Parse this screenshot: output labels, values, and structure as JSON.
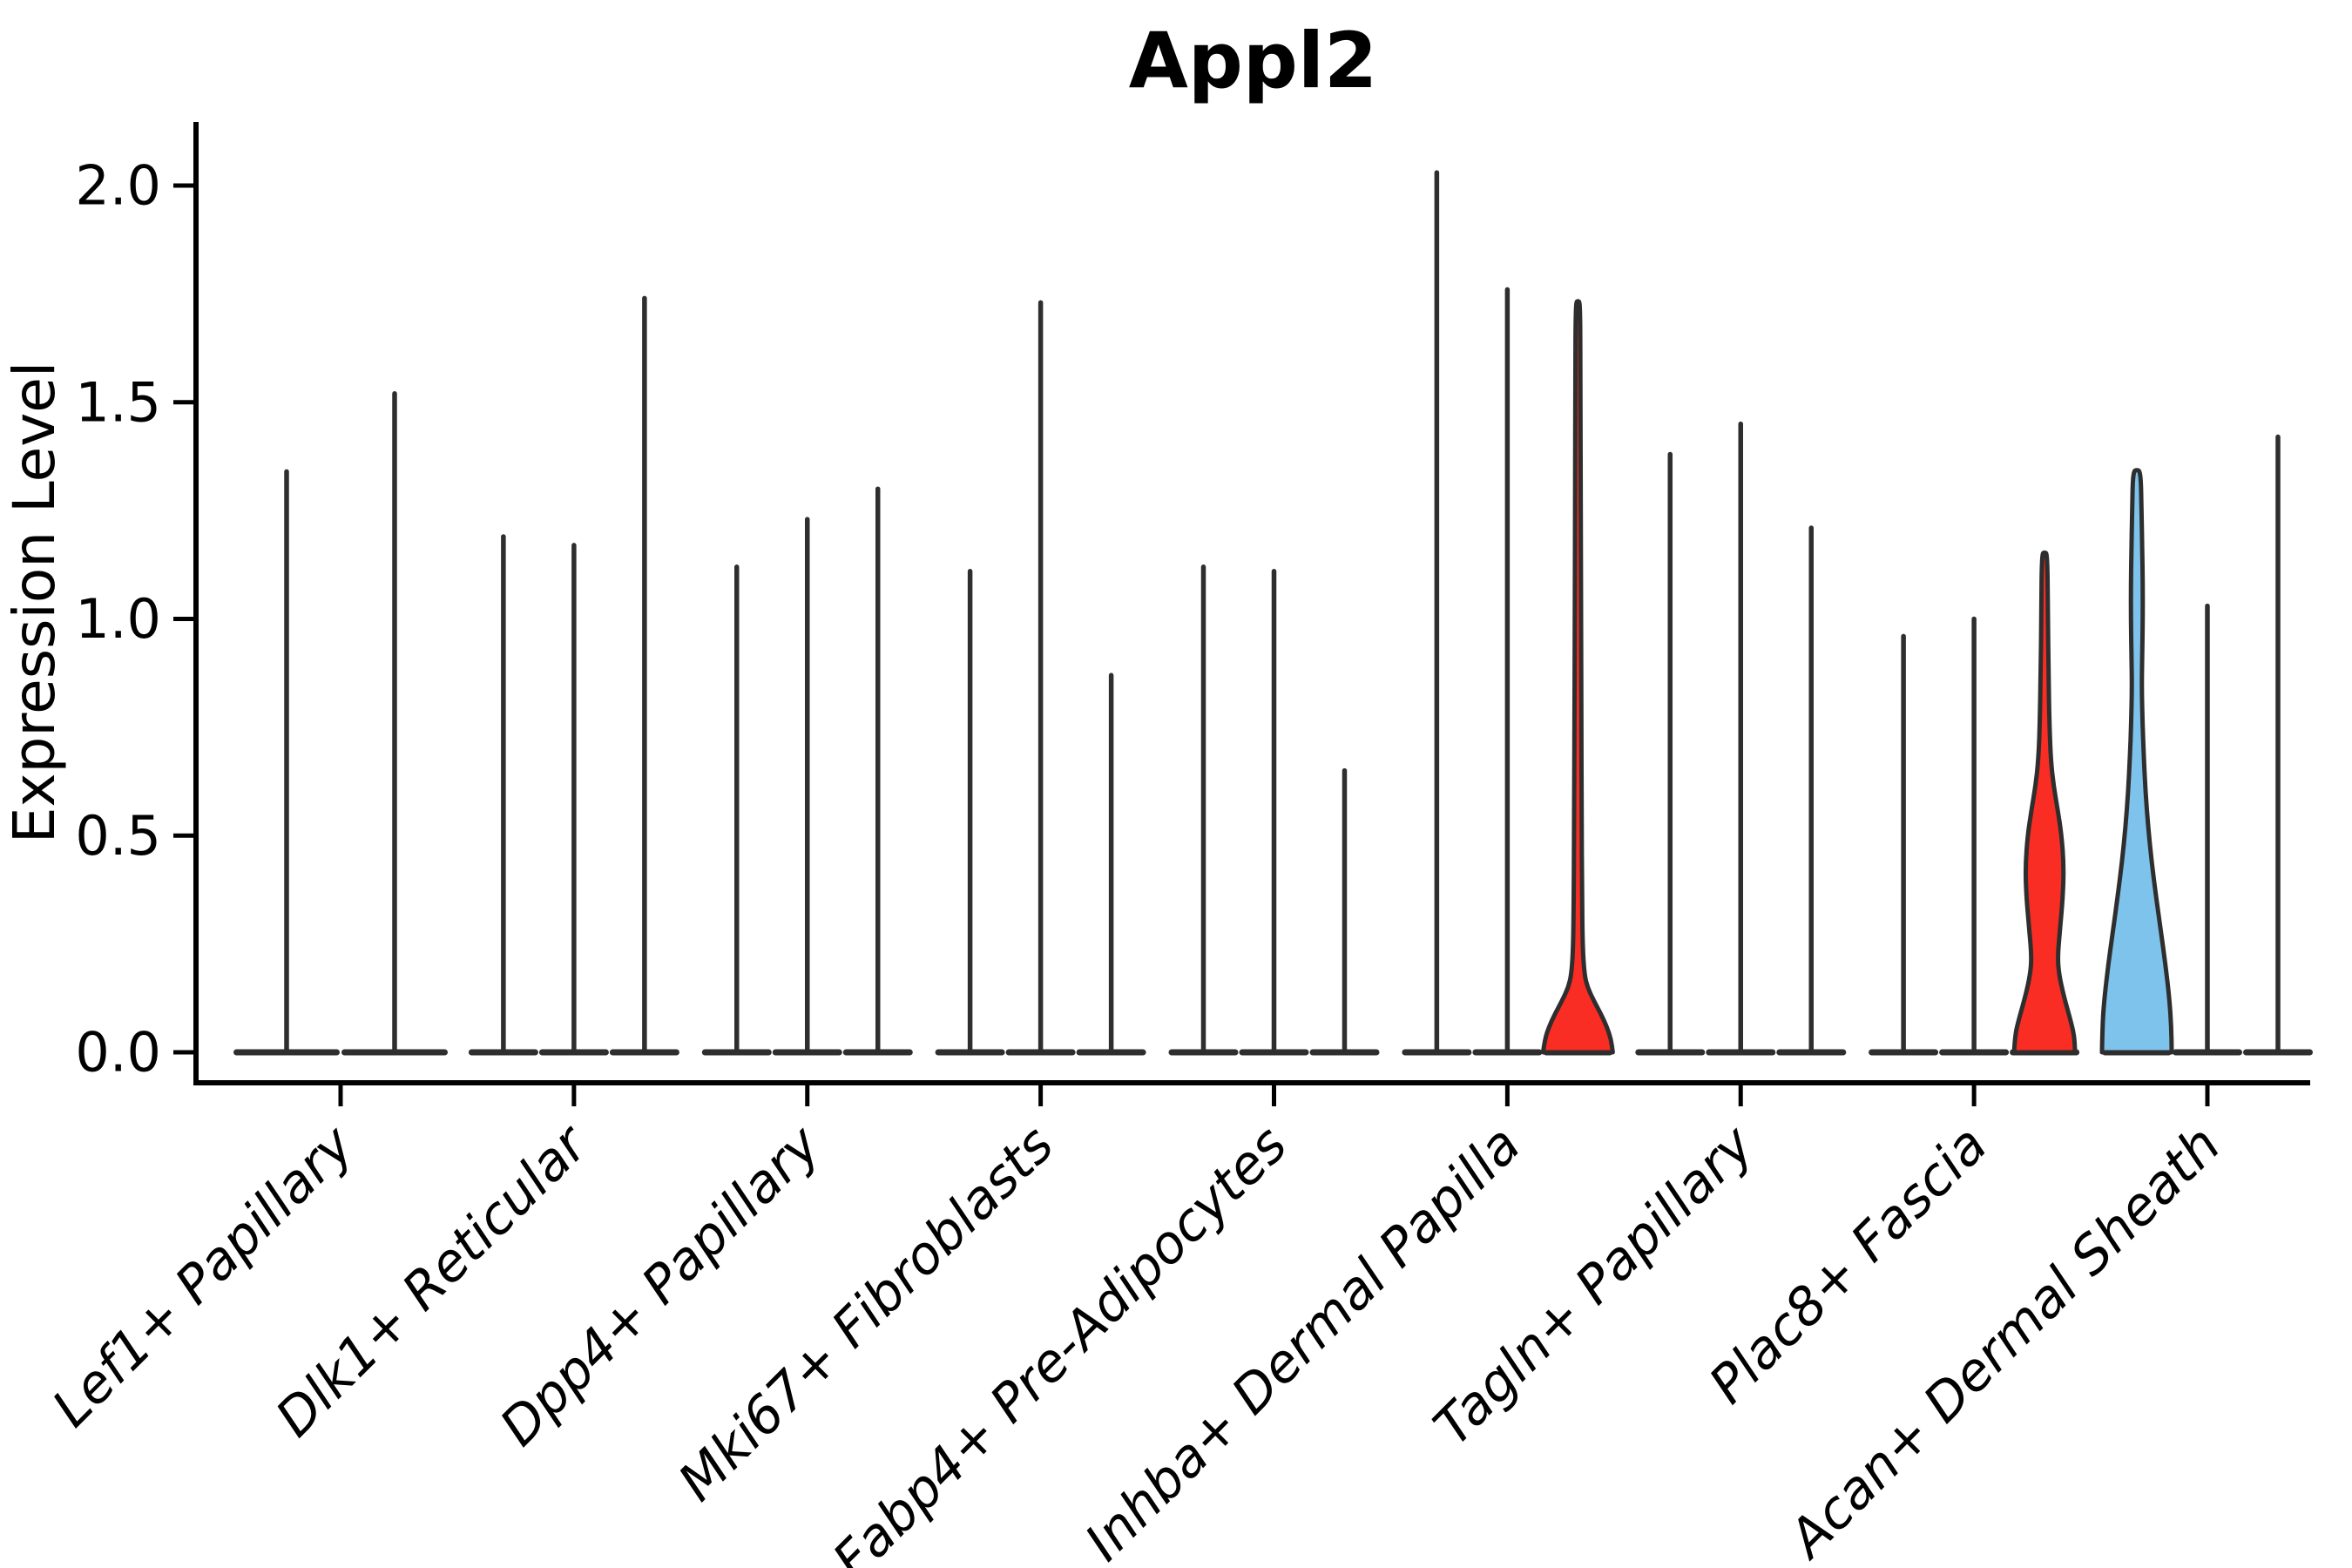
{
  "title": "Appl2",
  "ylabel": "Expression Level",
  "ytick_labels": [
    "0.0",
    "0.5",
    "1.0",
    "1.5",
    "2.0"
  ],
  "colors": {
    "red": "#f92d23",
    "blue": "#7ec3eb",
    "violin_stroke": "#2e2e2e",
    "axis": "#000000"
  },
  "chart_data": {
    "type": "violin",
    "title": "Appl2",
    "xlabel": "",
    "ylabel": "Expression Level",
    "ylim": [
      -0.07,
      2.15
    ],
    "yticks": [
      0.0,
      0.5,
      1.0,
      1.5,
      2.0
    ],
    "grid": false,
    "legend": "none",
    "description": "Grouped violin plot of Appl2 expression per fibroblast cluster; most violins collapse to a flat base at 0 with a thin spike to the max expressed cell. Three violins have visible density bodies: red violins in Inhba+ Dermal Papilla and Plac8+ Fascia groups, one blue violin in Acan+ Dermal Sheath group.",
    "categories": [
      {
        "label": "Lef1+ Papillary",
        "violins": [
          {
            "max": 1.34,
            "shape": "spike"
          },
          {
            "max": 1.52,
            "shape": "spike"
          }
        ]
      },
      {
        "label": "Dlk1+ Reticular",
        "violins": [
          {
            "max": 1.19,
            "shape": "spike"
          },
          {
            "max": 1.17,
            "shape": "spike"
          },
          {
            "max": 1.74,
            "shape": "spike"
          }
        ]
      },
      {
        "label": "Dpp4+ Papillary",
        "violins": [
          {
            "max": 1.12,
            "shape": "spike"
          },
          {
            "max": 1.23,
            "shape": "spike"
          },
          {
            "max": 1.3,
            "shape": "spike"
          }
        ]
      },
      {
        "label": "Mki67+ Fibroblasts",
        "violins": [
          {
            "max": 1.11,
            "shape": "spike"
          },
          {
            "max": 1.73,
            "shape": "spike"
          },
          {
            "max": 0.87,
            "shape": "spike"
          }
        ]
      },
      {
        "label": "Fabp4+ Pre-Adipocytes",
        "violins": [
          {
            "max": 1.12,
            "shape": "spike"
          },
          {
            "max": 1.11,
            "shape": "spike"
          },
          {
            "max": 0.65,
            "shape": "spike"
          }
        ]
      },
      {
        "label": "Inhba+ Dermal Papilla",
        "violins": [
          {
            "max": 2.03,
            "shape": "spike"
          },
          {
            "max": 1.76,
            "shape": "spike"
          },
          {
            "max": 1.73,
            "shape": "bell",
            "fill": "red"
          }
        ]
      },
      {
        "label": "Tagln+ Papillary",
        "violins": [
          {
            "max": 1.38,
            "shape": "spike"
          },
          {
            "max": 1.45,
            "shape": "spike"
          },
          {
            "max": 1.21,
            "shape": "spike"
          }
        ]
      },
      {
        "label": "Plac8+ Fascia",
        "violins": [
          {
            "max": 0.96,
            "shape": "spike"
          },
          {
            "max": 1.0,
            "shape": "spike"
          },
          {
            "max": 1.15,
            "shape": "vase",
            "fill": "red"
          }
        ]
      },
      {
        "label": "Acan+ Dermal Sheath",
        "violins": [
          {
            "max": 1.34,
            "shape": "wide",
            "fill": "blue"
          },
          {
            "max": 1.03,
            "shape": "spike"
          },
          {
            "max": 1.42,
            "shape": "spike"
          }
        ]
      }
    ],
    "shape_profiles": {
      "bell": [
        [
          0,
          40
        ],
        [
          0.03,
          38
        ],
        [
          0.06,
          33
        ],
        [
          0.09,
          26
        ],
        [
          0.12,
          18
        ],
        [
          0.15,
          11
        ],
        [
          0.18,
          7.5
        ],
        [
          0.24,
          5.5
        ],
        [
          0.35,
          4.8
        ],
        [
          0.55,
          4.3
        ],
        [
          0.75,
          4.0
        ],
        [
          1.0,
          3.6
        ],
        [
          1.3,
          3.2
        ],
        [
          1.55,
          2.9
        ],
        [
          1.73,
          2.6
        ]
      ],
      "vase": [
        [
          0,
          35
        ],
        [
          0.04,
          34
        ],
        [
          0.08,
          29
        ],
        [
          0.13,
          22
        ],
        [
          0.18,
          16.5
        ],
        [
          0.22,
          15
        ],
        [
          0.28,
          17.5
        ],
        [
          0.36,
          21
        ],
        [
          0.43,
          22
        ],
        [
          0.5,
          19.5
        ],
        [
          0.56,
          15
        ],
        [
          0.62,
          10
        ],
        [
          0.68,
          7
        ],
        [
          0.76,
          5.5
        ],
        [
          0.88,
          4.5
        ],
        [
          1.0,
          3.8
        ],
        [
          1.15,
          3.2
        ]
      ],
      "wide": [
        [
          0,
          40
        ],
        [
          0.06,
          39.5
        ],
        [
          0.12,
          37.5
        ],
        [
          0.2,
          33
        ],
        [
          0.28,
          27.5
        ],
        [
          0.36,
          22
        ],
        [
          0.44,
          17
        ],
        [
          0.52,
          13
        ],
        [
          0.6,
          10
        ],
        [
          0.68,
          8
        ],
        [
          0.76,
          6.5
        ],
        [
          0.84,
          5.6
        ],
        [
          0.92,
          6.2
        ],
        [
          1.0,
          6.8
        ],
        [
          1.08,
          6.8
        ],
        [
          1.16,
          6.2
        ],
        [
          1.25,
          5.4
        ],
        [
          1.34,
          4.4
        ]
      ]
    }
  }
}
